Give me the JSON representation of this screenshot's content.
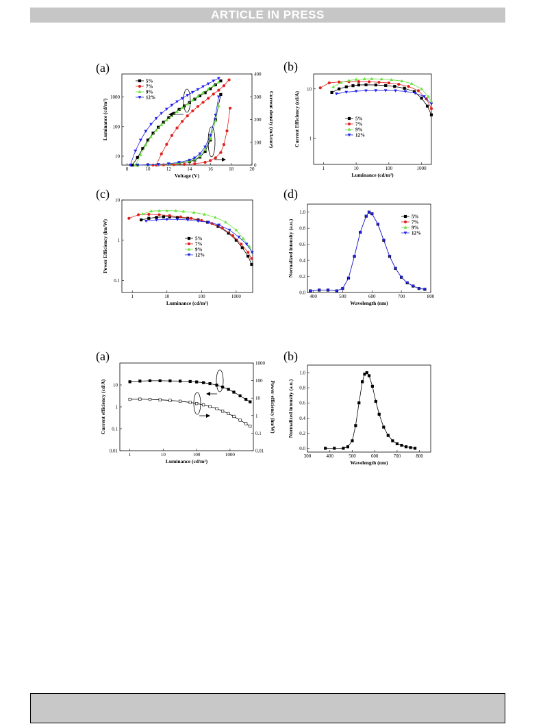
{
  "header": {
    "banner": "ARTICLE IN PRESS"
  },
  "panels": [
    "(a)",
    "(b)",
    "(c)",
    "(d)",
    "(a)",
    "(b)"
  ],
  "legend_labels": [
    "5%",
    "7%",
    "9%",
    "12%"
  ],
  "colors": {
    "5%": "#000000",
    "7%": "#e0201c",
    "9%": "#66e33a",
    "12%": "#2222ee",
    "banner_bg": "#c6c6c6",
    "footer_bg": "#c8c8c8"
  },
  "chart_data": [
    {
      "id": "fig1a",
      "type": "line",
      "xlabel": "Voltage (V)",
      "ylabel": "Luminance (cd/m²)",
      "y2label": "Current density (mA/cm²)",
      "xlim": [
        7.5,
        20
      ],
      "ylim": [
        5,
        6000
      ],
      "y2lim": [
        0,
        400
      ],
      "yscale": "log",
      "xticks": [
        "8",
        "10",
        "12",
        "14",
        "16",
        "18",
        "20"
      ],
      "yticks": [
        "10",
        "100",
        "1000"
      ],
      "y2ticks": [
        "0",
        "100",
        "200",
        "300",
        "400"
      ],
      "series": [
        {
          "name": "5%",
          "axis": "left",
          "x": [
            8.5,
            9,
            9.5,
            10,
            10.5,
            11,
            11.5,
            12,
            12.5,
            13,
            13.5,
            14,
            14.5,
            15,
            15.5,
            16,
            16.5,
            17
          ],
          "y": [
            5,
            9,
            18,
            35,
            60,
            95,
            140,
            200,
            280,
            380,
            500,
            650,
            850,
            1100,
            1400,
            1900,
            2600,
            3500
          ]
        },
        {
          "name": "7%",
          "axis": "left",
          "x": [
            10.8,
            11.3,
            11.8,
            12.3,
            12.8,
            13.3,
            13.8,
            14.3,
            14.8,
            15.3,
            15.8,
            16.3,
            16.8,
            17.3,
            17.8
          ],
          "y": [
            5,
            12,
            25,
            50,
            90,
            150,
            230,
            340,
            480,
            660,
            900,
            1250,
            1700,
            2400,
            3800
          ]
        },
        {
          "name": "9%",
          "axis": "left",
          "x": [
            8.8,
            9.3,
            9.8,
            10.3,
            10.8,
            11.3,
            11.8,
            12.3,
            12.8,
            13.3,
            13.8,
            14.3,
            14.8,
            15.3,
            15.8,
            16.3,
            16.8
          ],
          "y": [
            5,
            11,
            24,
            45,
            75,
            115,
            165,
            230,
            320,
            430,
            580,
            780,
            1050,
            1400,
            1850,
            2400,
            3200
          ]
        },
        {
          "name": "12%",
          "axis": "left",
          "x": [
            8.3,
            8.8,
            9.3,
            9.8,
            10.3,
            10.8,
            11.3,
            11.8,
            12.3,
            12.8,
            13.3,
            13.8,
            14.3,
            14.8,
            15.3,
            15.8,
            16.3,
            16.8
          ],
          "y": [
            5,
            15,
            35,
            70,
            120,
            190,
            280,
            390,
            530,
            700,
            900,
            1150,
            1450,
            1800,
            2250,
            2800,
            3500,
            4300
          ]
        },
        {
          "name": "5%",
          "axis": "right",
          "x": [
            9,
            10,
            11,
            12,
            13,
            14,
            14.5,
            15,
            15.5,
            16,
            16.5,
            17
          ],
          "y": [
            0,
            1,
            2,
            4,
            8,
            15,
            22,
            35,
            60,
            110,
            200,
            310
          ]
        },
        {
          "name": "7%",
          "axis": "right",
          "x": [
            10.5,
            11.5,
            12.5,
            13.5,
            14.5,
            15.5,
            16,
            16.5,
            17,
            17.3,
            17.6,
            17.9
          ],
          "y": [
            0,
            1,
            2,
            3,
            6,
            12,
            20,
            32,
            55,
            90,
            150,
            250
          ]
        },
        {
          "name": "9%",
          "axis": "right",
          "x": [
            9,
            10,
            11,
            12,
            13,
            14,
            14.5,
            15,
            15.5,
            16,
            16.5,
            16.8
          ],
          "y": [
            0,
            1,
            2,
            4,
            9,
            17,
            25,
            40,
            68,
            115,
            195,
            260
          ]
        },
        {
          "name": "12%",
          "axis": "right",
          "x": [
            9,
            10,
            11,
            12,
            13,
            14,
            14.5,
            15,
            15.5,
            16,
            16.5,
            16.8
          ],
          "y": [
            0,
            1,
            3,
            6,
            12,
            22,
            32,
            50,
            80,
            130,
            220,
            300
          ]
        }
      ]
    },
    {
      "id": "fig1b",
      "type": "line",
      "xlabel": "Luminance (cd/m²)",
      "ylabel": "Current Efficiency (cd/A)",
      "xscale": "log",
      "yscale": "log",
      "xlim": [
        0.5,
        2000
      ],
      "ylim": [
        0.3,
        20
      ],
      "xticks": [
        "1",
        "10",
        "100",
        "1000"
      ],
      "yticks": [
        "1",
        "10"
      ],
      "series": [
        {
          "name": "5%",
          "x": [
            1.8,
            3,
            5,
            8,
            12,
            20,
            40,
            80,
            150,
            300,
            600,
            1000,
            1500,
            2000
          ],
          "y": [
            8.5,
            10,
            11,
            11.6,
            12,
            12.1,
            12,
            11.7,
            11.2,
            10.3,
            8.8,
            6.5,
            4.5,
            3
          ]
        },
        {
          "name": "7%",
          "x": [
            0.8,
            1.5,
            3,
            6,
            12,
            25,
            50,
            100,
            200,
            400,
            800,
            1400,
            2000
          ],
          "y": [
            10.5,
            13.2,
            13.8,
            14,
            14,
            13.9,
            13.6,
            13.2,
            12.4,
            11.2,
            9.2,
            6.3,
            4
          ]
        },
        {
          "name": "9%",
          "x": [
            2,
            3.5,
            6,
            10,
            18,
            30,
            60,
            120,
            250,
            500,
            1000,
            1600,
            2000
          ],
          "y": [
            11,
            13.5,
            14.8,
            15.5,
            15.9,
            16,
            15.8,
            15.3,
            14.4,
            12.8,
            10,
            7,
            5.5
          ]
        },
        {
          "name": "12%",
          "x": [
            2.5,
            5,
            10,
            20,
            40,
            80,
            160,
            320,
            640,
            1200,
            2000
          ],
          "y": [
            8,
            8.6,
            9,
            9.2,
            9.3,
            9.3,
            9.2,
            8.9,
            8.2,
            7,
            5
          ]
        }
      ]
    },
    {
      "id": "fig1c",
      "type": "line",
      "xlabel": "Luminance (cd/m²)",
      "ylabel": "Power Efficiency (lm/W)",
      "xscale": "log",
      "yscale": "log",
      "xlim": [
        0.5,
        3000
      ],
      "ylim": [
        0.05,
        10
      ],
      "xticks": [
        "1",
        "10",
        "100",
        "1000"
      ],
      "yticks": [
        "0.1",
        "1",
        "10"
      ],
      "series": [
        {
          "name": "5%",
          "x": [
            1.8,
            3,
            5,
            8,
            12,
            20,
            40,
            80,
            150,
            300,
            600,
            1000,
            1500,
            2200,
            2800
          ],
          "y": [
            3.2,
            3.5,
            3.7,
            3.8,
            3.8,
            3.7,
            3.5,
            3.2,
            2.8,
            2.2,
            1.5,
            1,
            0.65,
            0.4,
            0.25
          ]
        },
        {
          "name": "7%",
          "x": [
            0.8,
            1.5,
            3,
            6,
            12,
            25,
            50,
            100,
            200,
            400,
            800,
            1400,
            2200,
            2800
          ],
          "y": [
            3.5,
            4.3,
            4.4,
            4.3,
            4.1,
            3.8,
            3.5,
            3.1,
            2.6,
            2,
            1.3,
            0.8,
            0.5,
            0.35
          ]
        },
        {
          "name": "9%",
          "x": [
            2,
            3.5,
            6,
            10,
            18,
            30,
            60,
            120,
            250,
            500,
            1000,
            1600,
            2400,
            2900
          ],
          "y": [
            4.5,
            5.3,
            5.4,
            5.4,
            5.4,
            5.2,
            4.9,
            4.4,
            3.7,
            2.8,
            1.8,
            1.1,
            0.7,
            0.5
          ]
        },
        {
          "name": "12%",
          "x": [
            2.5,
            5,
            10,
            20,
            40,
            80,
            160,
            320,
            640,
            1200,
            2000,
            2900
          ],
          "y": [
            3,
            3.2,
            3.3,
            3.3,
            3.2,
            3,
            2.8,
            2.4,
            1.8,
            1.2,
            0.8,
            0.5
          ]
        }
      ]
    },
    {
      "id": "fig1d",
      "type": "line",
      "xlabel": "Wavelength (nm)",
      "ylabel": "Normalized intensity (a.u.)",
      "xlim": [
        380,
        800
      ],
      "ylim": [
        0,
        1.1
      ],
      "xticks": [
        "400",
        "500",
        "600",
        "700",
        "800"
      ],
      "yticks": [
        "0.0",
        "0.2",
        "0.4",
        "0.6",
        "0.8",
        "1.0"
      ],
      "series": [
        {
          "name": "5%",
          "x": [
            390,
            420,
            450,
            480,
            500,
            520,
            540,
            560,
            580,
            590,
            600,
            620,
            640,
            660,
            680,
            700,
            720,
            740,
            760,
            780
          ],
          "y": [
            0.02,
            0.03,
            0.03,
            0.02,
            0.05,
            0.18,
            0.45,
            0.75,
            0.95,
            1.0,
            0.98,
            0.85,
            0.65,
            0.45,
            0.3,
            0.19,
            0.12,
            0.08,
            0.05,
            0.04
          ]
        },
        {
          "name": "12%",
          "x": [
            390,
            420,
            450,
            480,
            500,
            520,
            540,
            560,
            580,
            590,
            600,
            620,
            640,
            660,
            680,
            700,
            720,
            740,
            760,
            780
          ],
          "y": [
            0.02,
            0.03,
            0.03,
            0.02,
            0.05,
            0.18,
            0.45,
            0.75,
            0.95,
            1.0,
            0.98,
            0.85,
            0.65,
            0.45,
            0.3,
            0.19,
            0.12,
            0.08,
            0.05,
            0.04
          ]
        }
      ]
    },
    {
      "id": "fig2a",
      "type": "scatter",
      "xlabel": "Luminance (cd/m²)",
      "ylabel": "Current efficiency (cd/A)",
      "y2label": "Power efficiency (lm/W)",
      "xscale": "log",
      "yscale": "log",
      "xlim": [
        0.5,
        5000
      ],
      "ylim": [
        0.01,
        100
      ],
      "y2lim": [
        0.01,
        1000
      ],
      "xticks": [
        "1",
        "10",
        "100",
        "1000"
      ],
      "yticks": [
        "0.01",
        "0.1",
        "1",
        "10"
      ],
      "y2ticks": [
        "0.01",
        "0.1",
        "1",
        "10",
        "100",
        "1000"
      ],
      "series": [
        {
          "name": "",
          "axis": "left",
          "x": [
            1,
            2,
            4,
            8,
            16,
            32,
            64,
            100,
            160,
            250,
            400,
            600,
            900,
            1300,
            2000,
            3000,
            4000
          ],
          "y": [
            14,
            15,
            15.5,
            15.5,
            15.3,
            15,
            14.4,
            13.7,
            12.7,
            11.5,
            9.8,
            8,
            6.3,
            4.7,
            3.2,
            2.2,
            1.7
          ]
        },
        {
          "name": "",
          "axis": "right",
          "x": [
            1,
            2,
            4,
            8,
            16,
            32,
            64,
            100,
            160,
            250,
            400,
            600,
            900,
            1300,
            2000,
            3000,
            4000
          ],
          "y": [
            8.5,
            8.7,
            8.4,
            8,
            7.4,
            6.6,
            5.7,
            4.9,
            4.1,
            3.3,
            2.5,
            1.8,
            1.3,
            0.9,
            0.55,
            0.35,
            0.25
          ]
        }
      ]
    },
    {
      "id": "fig2b",
      "type": "line",
      "xlabel": "Wavelength (nm)",
      "ylabel": "Normalized intensity (a.u.)",
      "xlim": [
        300,
        850
      ],
      "ylim": [
        -0.05,
        1.1
      ],
      "xticks": [
        "300",
        "400",
        "500",
        "600",
        "700",
        "800"
      ],
      "yticks": [
        "0.0",
        "0.2",
        "0.4",
        "0.6",
        "0.8",
        "1.0"
      ],
      "series": [
        {
          "name": "",
          "x": [
            380,
            420,
            460,
            480,
            500,
            515,
            530,
            545,
            555,
            565,
            575,
            590,
            605,
            620,
            640,
            660,
            680,
            700,
            720,
            740,
            760,
            780
          ],
          "y": [
            0,
            0,
            0,
            0.02,
            0.1,
            0.3,
            0.6,
            0.88,
            0.98,
            1.0,
            0.96,
            0.82,
            0.62,
            0.45,
            0.28,
            0.17,
            0.1,
            0.06,
            0.04,
            0.02,
            0.01,
            0
          ]
        }
      ]
    }
  ]
}
